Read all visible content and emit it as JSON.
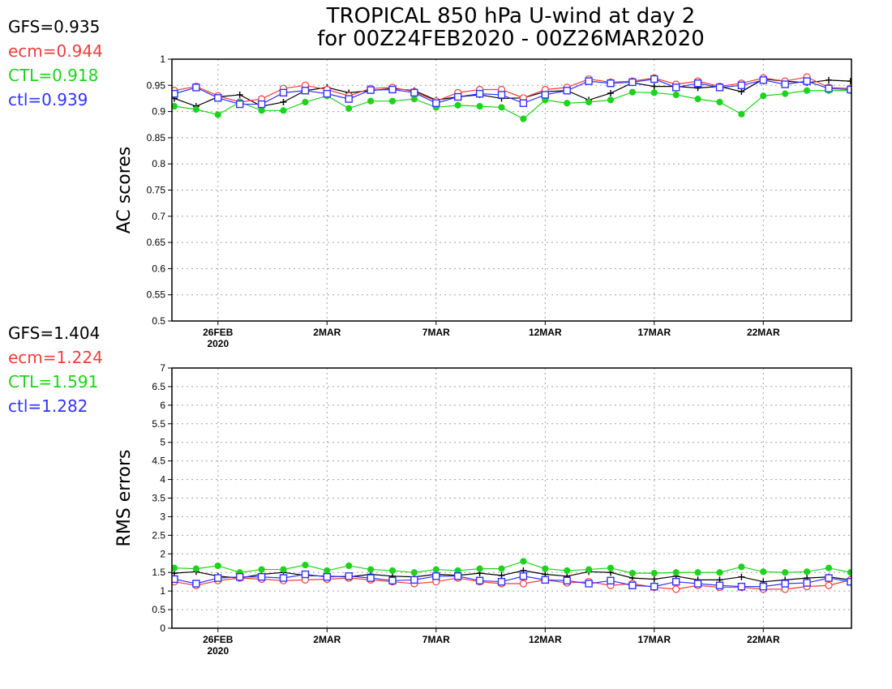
{
  "title_line1": "TROPICAL 850 hPa U-wind at day 2",
  "title_line2": "for 00Z24FEB2020 - 00Z26MAR2020",
  "colors": {
    "GFS": "#000000",
    "ecm": "#f03c3c",
    "CTL": "#1ed21e",
    "ctl": "#3232ff"
  },
  "chart_data": [
    {
      "type": "line",
      "ylabel": "AC scores",
      "ylim": [
        0.5,
        1
      ],
      "yticks": [
        "0.5",
        "0.55",
        "0.6",
        "0.65",
        "0.7",
        "0.75",
        "0.8",
        "0.85",
        "0.9",
        "0.95",
        "1"
      ],
      "xticks": [
        "26FEB",
        "2MAR",
        "7MAR",
        "12MAR",
        "17MAR",
        "22MAR"
      ],
      "xtick_year": "2020",
      "x": [
        "24FEB",
        "25FEB",
        "26FEB",
        "27FEB",
        "28FEB",
        "29FEB",
        "1MAR",
        "2MAR",
        "3MAR",
        "4MAR",
        "5MAR",
        "6MAR",
        "7MAR",
        "8MAR",
        "9MAR",
        "10MAR",
        "11MAR",
        "12MAR",
        "13MAR",
        "14MAR",
        "15MAR",
        "16MAR",
        "17MAR",
        "18MAR",
        "19MAR",
        "20MAR",
        "21MAR",
        "22MAR",
        "23MAR",
        "24MAR",
        "25MAR",
        "26MAR"
      ],
      "legend": [
        {
          "label": "GFS=0.935",
          "key": "GFS"
        },
        {
          "label": "ecm=0.944",
          "key": "ecm"
        },
        {
          "label": "CTL=0.918",
          "key": "CTL"
        },
        {
          "label": "ctl=0.939",
          "key": "ctl"
        }
      ],
      "series": [
        {
          "key": "GFS",
          "marker": "plus",
          "values": [
            0.925,
            0.91,
            0.928,
            0.932,
            0.91,
            0.918,
            0.94,
            0.946,
            0.936,
            0.94,
            0.944,
            0.94,
            0.922,
            0.928,
            0.932,
            0.925,
            0.926,
            0.938,
            0.94,
            0.922,
            0.935,
            0.955,
            0.948,
            0.948,
            0.945,
            0.948,
            0.938,
            0.962,
            0.958,
            0.955,
            0.96,
            0.958
          ]
        },
        {
          "key": "ecm",
          "marker": "circle",
          "values": [
            0.94,
            0.948,
            0.93,
            0.918,
            0.924,
            0.944,
            0.95,
            0.942,
            0.93,
            0.944,
            0.946,
            0.938,
            0.92,
            0.936,
            0.942,
            0.942,
            0.926,
            0.942,
            0.946,
            0.962,
            0.956,
            0.958,
            0.964,
            0.952,
            0.958,
            0.948,
            0.954,
            0.964,
            0.958,
            0.966,
            0.946,
            0.944
          ]
        },
        {
          "key": "CTL",
          "marker": "dot",
          "values": [
            0.91,
            0.904,
            0.894,
            0.918,
            0.902,
            0.902,
            0.918,
            0.93,
            0.906,
            0.92,
            0.92,
            0.924,
            0.908,
            0.912,
            0.91,
            0.908,
            0.886,
            0.922,
            0.916,
            0.918,
            0.922,
            0.937,
            0.936,
            0.932,
            0.924,
            0.918,
            0.895,
            0.93,
            0.934,
            0.94,
            0.94,
            0.94
          ]
        },
        {
          "key": "ctl",
          "marker": "square",
          "values": [
            0.934,
            0.946,
            0.926,
            0.914,
            0.914,
            0.936,
            0.94,
            0.934,
            0.924,
            0.941,
            0.942,
            0.936,
            0.916,
            0.928,
            0.934,
            0.932,
            0.916,
            0.932,
            0.94,
            0.958,
            0.954,
            0.956,
            0.962,
            0.946,
            0.954,
            0.946,
            0.95,
            0.96,
            0.952,
            0.958,
            0.944,
            0.942
          ]
        }
      ]
    },
    {
      "type": "line",
      "ylabel": "RMS errors",
      "ylim": [
        0,
        7
      ],
      "yticks": [
        "0",
        "0.5",
        "1",
        "1.5",
        "2",
        "2.5",
        "3",
        "3.5",
        "4",
        "4.5",
        "5",
        "5.5",
        "6",
        "6.5",
        "7"
      ],
      "xticks": [
        "26FEB",
        "2MAR",
        "7MAR",
        "12MAR",
        "17MAR",
        "22MAR"
      ],
      "xtick_year": "2020",
      "x": [
        "24FEB",
        "25FEB",
        "26FEB",
        "27FEB",
        "28FEB",
        "29FEB",
        "1MAR",
        "2MAR",
        "3MAR",
        "4MAR",
        "5MAR",
        "6MAR",
        "7MAR",
        "8MAR",
        "9MAR",
        "10MAR",
        "11MAR",
        "12MAR",
        "13MAR",
        "14MAR",
        "15MAR",
        "16MAR",
        "17MAR",
        "18MAR",
        "19MAR",
        "20MAR",
        "21MAR",
        "22MAR",
        "23MAR",
        "24MAR",
        "25MAR",
        "26MAR"
      ],
      "legend": [
        {
          "label": "GFS=1.404",
          "key": "GFS"
        },
        {
          "label": "ecm=1.224",
          "key": "ecm"
        },
        {
          "label": "CTL=1.591",
          "key": "CTL"
        },
        {
          "label": "ctl=1.282",
          "key": "ctl"
        }
      ],
      "series": [
        {
          "key": "GFS",
          "marker": "plus",
          "values": [
            1.48,
            1.52,
            1.4,
            1.35,
            1.45,
            1.5,
            1.42,
            1.4,
            1.38,
            1.45,
            1.4,
            1.38,
            1.45,
            1.42,
            1.48,
            1.42,
            1.55,
            1.45,
            1.4,
            1.52,
            1.5,
            1.35,
            1.32,
            1.4,
            1.3,
            1.3,
            1.38,
            1.25,
            1.3,
            1.35,
            1.38,
            1.3
          ]
        },
        {
          "key": "ecm",
          "marker": "circle",
          "values": [
            1.25,
            1.15,
            1.28,
            1.35,
            1.32,
            1.28,
            1.3,
            1.32,
            1.35,
            1.3,
            1.25,
            1.2,
            1.25,
            1.35,
            1.25,
            1.2,
            1.2,
            1.3,
            1.22,
            1.25,
            1.15,
            1.2,
            1.1,
            1.05,
            1.15,
            1.1,
            1.1,
            1.05,
            1.05,
            1.12,
            1.15,
            1.3
          ]
        },
        {
          "key": "CTL",
          "marker": "dot",
          "values": [
            1.62,
            1.6,
            1.68,
            1.5,
            1.58,
            1.58,
            1.7,
            1.55,
            1.68,
            1.58,
            1.55,
            1.5,
            1.58,
            1.55,
            1.6,
            1.6,
            1.8,
            1.6,
            1.55,
            1.58,
            1.62,
            1.48,
            1.48,
            1.5,
            1.5,
            1.5,
            1.65,
            1.52,
            1.5,
            1.52,
            1.62,
            1.5
          ]
        },
        {
          "key": "ctl",
          "marker": "square",
          "values": [
            1.32,
            1.2,
            1.35,
            1.38,
            1.38,
            1.35,
            1.45,
            1.38,
            1.4,
            1.35,
            1.28,
            1.3,
            1.4,
            1.4,
            1.28,
            1.25,
            1.4,
            1.3,
            1.28,
            1.2,
            1.28,
            1.15,
            1.12,
            1.25,
            1.2,
            1.15,
            1.12,
            1.12,
            1.2,
            1.22,
            1.35,
            1.25
          ]
        }
      ]
    }
  ]
}
